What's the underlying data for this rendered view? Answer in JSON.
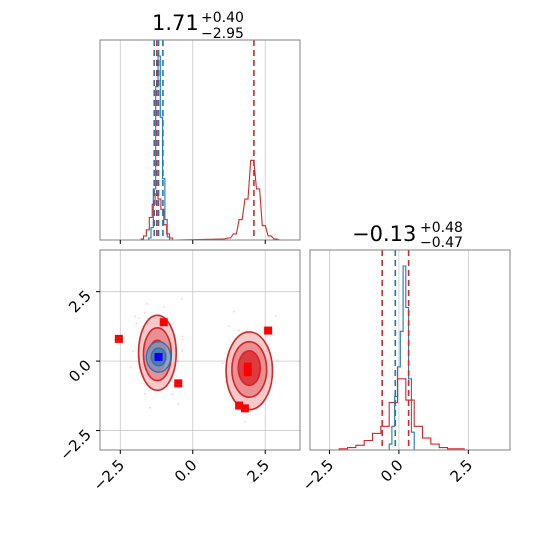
{
  "chart_data": [
    {
      "type": "histogram",
      "panel": "marginal-x",
      "title": {
        "median": "1.71",
        "plus": "+0.40",
        "minus": "−2.95"
      },
      "xlim": [
        -3.2,
        3.7
      ],
      "grid": true,
      "series": [
        {
          "name": "",
          "color": "#1f77b4",
          "x": [
            -1.6,
            -1.52,
            -1.44,
            -1.36,
            -1.28,
            -1.2,
            -1.12,
            -1.04,
            -0.96,
            -0.88,
            -0.8
          ],
          "counts": [
            0,
            2,
            12,
            50,
            150,
            180,
            120,
            60,
            20,
            3,
            0
          ]
        },
        {
          "name": "",
          "color": "#d62728",
          "x": [
            -1.8,
            -1.7,
            -1.6,
            -1.5,
            -1.4,
            -1.3,
            -1.2,
            -1.1,
            -1.0,
            -0.9,
            -0.8,
            -0.7,
            1.0,
            1.2,
            1.4,
            1.6,
            1.8,
            2.0,
            2.2,
            2.4,
            2.6,
            2.8,
            3.0
          ],
          "counts": [
            1,
            4,
            10,
            22,
            35,
            45,
            40,
            30,
            15,
            6,
            2,
            0,
            1,
            2,
            6,
            20,
            40,
            78,
            50,
            14,
            4,
            1,
            0
          ]
        }
      ],
      "quantile_lines": [
        {
          "color": "#1f77b4",
          "values": [
            -1.33,
            -1.18,
            -1.03
          ]
        },
        {
          "color": "#d62728",
          "values": [
            -1.24,
            2.11
          ]
        }
      ]
    },
    {
      "type": "scatter",
      "panel": "joint",
      "xlim": [
        -3.2,
        3.7
      ],
      "ylim": [
        -3.2,
        4.0
      ],
      "xticks": [
        "−2.5",
        "0.0",
        "2.5"
      ],
      "yticks": [
        "−2.5",
        "0.0",
        "2.5"
      ],
      "grid": true,
      "red_markers": [
        {
          "x": -2.55,
          "y": 0.8
        },
        {
          "x": -1.0,
          "y": 1.4
        },
        {
          "x": -0.5,
          "y": -0.8
        },
        {
          "x": 1.6,
          "y": -1.6
        },
        {
          "x": 1.8,
          "y": -1.7
        },
        {
          "x": 1.9,
          "y": -0.4
        },
        {
          "x": 1.9,
          "y": -0.2
        },
        {
          "x": 2.6,
          "y": 1.1
        }
      ],
      "blue_markers": [
        {
          "x": -1.18,
          "y": 0.15
        }
      ],
      "red_contours": [
        {
          "cx": -1.22,
          "cy": 0.3,
          "rx": 0.65,
          "ry": 1.35
        },
        {
          "cx": -1.22,
          "cy": 0.25,
          "rx": 0.48,
          "ry": 0.95
        },
        {
          "cx": -1.22,
          "cy": 0.2,
          "rx": 0.3,
          "ry": 0.55
        },
        {
          "cx": 1.95,
          "cy": -0.35,
          "rx": 0.8,
          "ry": 1.4
        },
        {
          "cx": 1.95,
          "cy": -0.3,
          "rx": 0.6,
          "ry": 1.0
        },
        {
          "cx": 1.95,
          "cy": -0.25,
          "rx": 0.38,
          "ry": 0.62
        }
      ],
      "blue_contours": [
        {
          "cx": -1.18,
          "cy": 0.15,
          "rx": 0.42,
          "ry": 0.55
        },
        {
          "cx": -1.18,
          "cy": 0.15,
          "rx": 0.25,
          "ry": 0.32
        }
      ]
    },
    {
      "type": "histogram",
      "panel": "marginal-y",
      "title": {
        "median": "−0.13",
        "plus": "+0.48",
        "minus": "−0.47"
      },
      "xlim": [
        -3.2,
        4.0
      ],
      "xticks": [
        "−2.5",
        "0.0",
        "2.5"
      ],
      "grid": true,
      "series": [
        {
          "name": "",
          "color": "#1f77b4",
          "x": [
            -0.45,
            -0.35,
            -0.25,
            -0.15,
            -0.05,
            0.05,
            0.15,
            0.25,
            0.35,
            0.45,
            0.55
          ],
          "counts": [
            0,
            5,
            20,
            45,
            70,
            100,
            155,
            120,
            60,
            15,
            0
          ]
        },
        {
          "name": "",
          "color": "#d62728",
          "x": [
            -2.45,
            -2.15,
            -1.85,
            -1.55,
            -1.25,
            -0.95,
            -0.65,
            -0.35,
            -0.05,
            0.25,
            0.55,
            0.85,
            1.15,
            1.45,
            1.75,
            2.05,
            2.35
          ],
          "counts": [
            0,
            1,
            2,
            4,
            8,
            14,
            20,
            40,
            60,
            42,
            20,
            10,
            5,
            2,
            1,
            1,
            0
          ]
        }
      ],
      "quantile_lines": [
        {
          "color": "#1f77b4",
          "values": [
            -0.13
          ]
        },
        {
          "color": "#d62728",
          "values": [
            -0.6,
            0.35
          ]
        }
      ]
    }
  ]
}
